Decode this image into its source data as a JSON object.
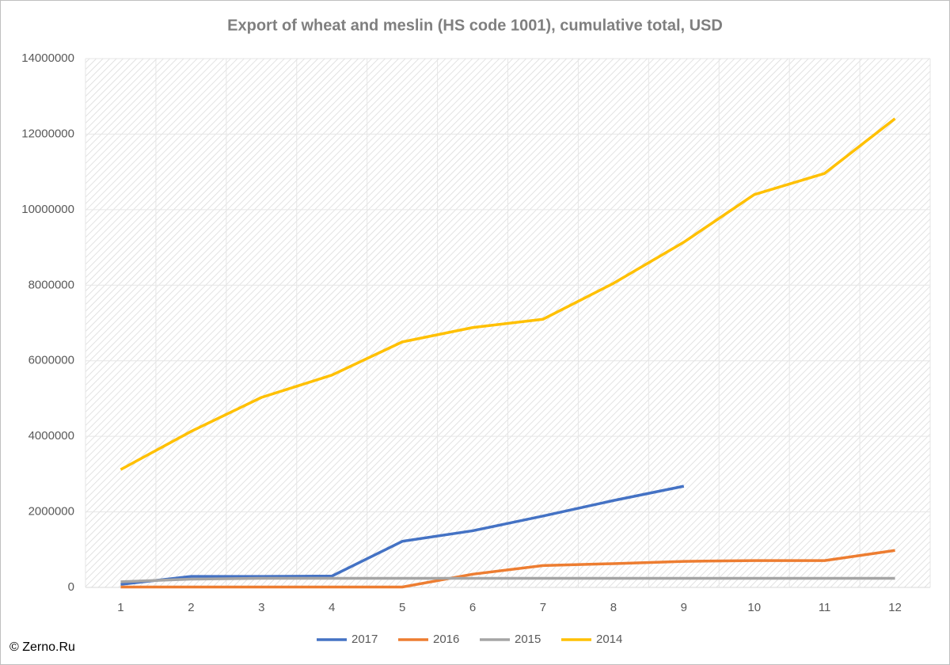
{
  "chart_data": {
    "type": "line",
    "title": "Export of wheat and meslin (HS code 1001), cumulative total, USD",
    "annotation": "© Zerno.Ru",
    "categories": [
      "1",
      "2",
      "3",
      "4",
      "5",
      "6",
      "7",
      "8",
      "9",
      "10",
      "11",
      "12"
    ],
    "series": [
      {
        "name": "2017",
        "color": "#4472c4",
        "values": [
          80000,
          290000,
          290000,
          300000,
          1220000,
          1500000,
          1890000,
          2300000,
          2680000,
          null,
          null,
          null
        ]
      },
      {
        "name": "2016",
        "color": "#ed7d31",
        "values": [
          10000,
          10000,
          10000,
          10000,
          10000,
          350000,
          580000,
          630000,
          690000,
          710000,
          710000,
          980000
        ]
      },
      {
        "name": "2015",
        "color": "#a5a5a5",
        "values": [
          150000,
          220000,
          240000,
          240000,
          240000,
          240000,
          240000,
          240000,
          240000,
          240000,
          240000,
          240000
        ]
      },
      {
        "name": "2014",
        "color": "#ffc000",
        "values": [
          3120000,
          4130000,
          5030000,
          5620000,
          6500000,
          6880000,
          7100000,
          8050000,
          9140000,
          10400000,
          10960000,
          12410000
        ]
      }
    ],
    "ylim": [
      0,
      14000000
    ],
    "yticks": [
      0,
      2000000,
      4000000,
      6000000,
      8000000,
      10000000,
      12000000,
      14000000
    ],
    "grid": true,
    "legend": "bottom"
  }
}
